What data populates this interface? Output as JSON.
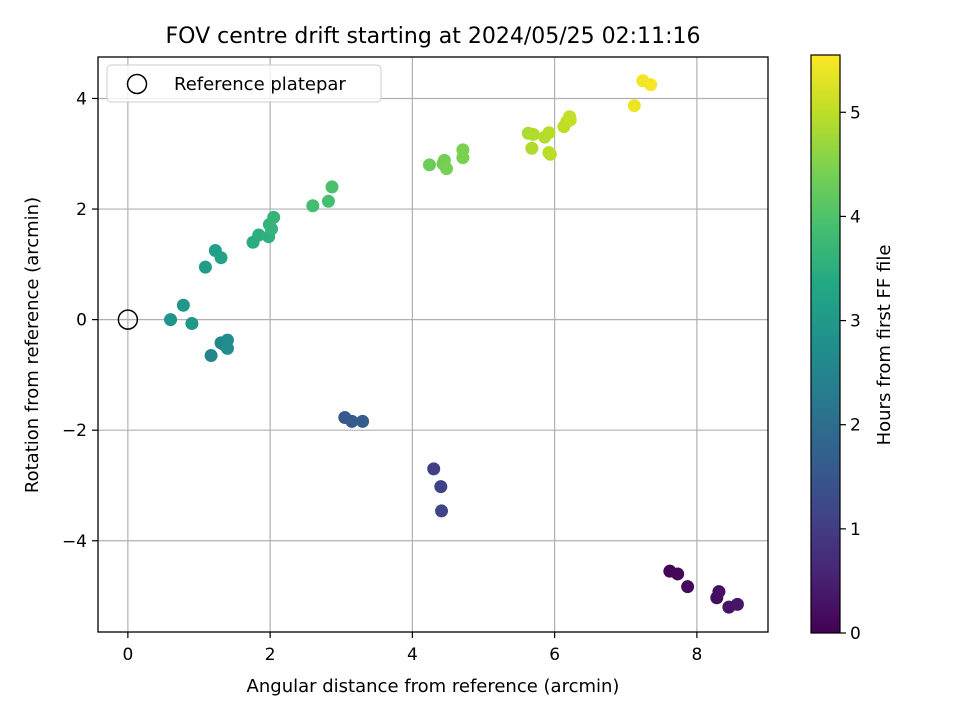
{
  "chart_data": {
    "type": "scatter",
    "title": "FOV centre drift starting at 2024/05/25 02:11:16",
    "xlabel": "Angular distance from reference (arcmin)",
    "ylabel": "Rotation from reference (arcmin)",
    "xlim": [
      -0.42,
      9.0
    ],
    "ylim": [
      -5.65,
      4.75
    ],
    "xticks": [
      0,
      2,
      4,
      6,
      8
    ],
    "yticks": [
      -4,
      -2,
      0,
      2,
      4
    ],
    "xtick_labels": [
      "0",
      "2",
      "4",
      "6",
      "8"
    ],
    "ytick_labels": [
      "−4",
      "−2",
      "0",
      "2",
      "4"
    ],
    "grid": true,
    "legend": {
      "placement": "top-left",
      "entries": [
        "Reference platepar"
      ]
    },
    "reference_point": {
      "x": 0,
      "y": 0,
      "marker": "open-circle",
      "color": "#000000"
    },
    "colorbar": {
      "label": "Hours from first FF file",
      "min": 0,
      "max": 5.55,
      "ticks": [
        0,
        1,
        2,
        3,
        4,
        5
      ],
      "tick_labels": [
        "0",
        "1",
        "2",
        "3",
        "4",
        "5"
      ],
      "colormap": "viridis"
    },
    "points": [
      {
        "x": 7.62,
        "y": -4.55,
        "h": 0.05
      },
      {
        "x": 7.73,
        "y": -4.6,
        "h": 0.1
      },
      {
        "x": 7.87,
        "y": -4.83,
        "h": 0.15
      },
      {
        "x": 8.28,
        "y": -5.03,
        "h": 0.2
      },
      {
        "x": 8.31,
        "y": -4.92,
        "h": 0.25
      },
      {
        "x": 8.45,
        "y": -5.2,
        "h": 0.3
      },
      {
        "x": 8.57,
        "y": -5.15,
        "h": 0.35
      },
      {
        "x": 4.3,
        "y": -2.7,
        "h": 1.05
      },
      {
        "x": 4.4,
        "y": -3.02,
        "h": 1.1
      },
      {
        "x": 4.41,
        "y": -3.46,
        "h": 1.15
      },
      {
        "x": 3.05,
        "y": -1.77,
        "h": 1.55
      },
      {
        "x": 3.15,
        "y": -1.84,
        "h": 1.6
      },
      {
        "x": 3.3,
        "y": -1.84,
        "h": 1.65
      },
      {
        "x": 1.17,
        "y": -0.65,
        "h": 2.5
      },
      {
        "x": 1.31,
        "y": -0.42,
        "h": 2.55
      },
      {
        "x": 1.35,
        "y": -0.45,
        "h": 2.6
      },
      {
        "x": 1.4,
        "y": -0.37,
        "h": 2.65
      },
      {
        "x": 1.4,
        "y": -0.52,
        "h": 2.7
      },
      {
        "x": 0.6,
        "y": 0.0,
        "h": 2.9
      },
      {
        "x": 0.78,
        "y": 0.26,
        "h": 2.95
      },
      {
        "x": 0.9,
        "y": -0.07,
        "h": 3.0
      },
      {
        "x": 1.09,
        "y": 0.95,
        "h": 3.1
      },
      {
        "x": 1.23,
        "y": 1.25,
        "h": 3.15
      },
      {
        "x": 1.31,
        "y": 1.12,
        "h": 3.2
      },
      {
        "x": 1.76,
        "y": 1.4,
        "h": 3.45
      },
      {
        "x": 1.84,
        "y": 1.53,
        "h": 3.5
      },
      {
        "x": 1.98,
        "y": 1.5,
        "h": 3.55
      },
      {
        "x": 1.99,
        "y": 1.72,
        "h": 3.6
      },
      {
        "x": 2.02,
        "y": 1.64,
        "h": 3.62
      },
      {
        "x": 2.05,
        "y": 1.85,
        "h": 3.65
      },
      {
        "x": 2.6,
        "y": 2.06,
        "h": 3.85
      },
      {
        "x": 2.82,
        "y": 2.14,
        "h": 3.9
      },
      {
        "x": 2.87,
        "y": 2.4,
        "h": 3.95
      },
      {
        "x": 4.24,
        "y": 2.8,
        "h": 4.3
      },
      {
        "x": 4.43,
        "y": 2.82,
        "h": 4.35
      },
      {
        "x": 4.45,
        "y": 2.88,
        "h": 4.38
      },
      {
        "x": 4.48,
        "y": 2.73,
        "h": 4.4
      },
      {
        "x": 4.71,
        "y": 2.93,
        "h": 4.45
      },
      {
        "x": 4.71,
        "y": 3.07,
        "h": 4.45
      },
      {
        "x": 5.63,
        "y": 3.37,
        "h": 4.85
      },
      {
        "x": 5.68,
        "y": 3.1,
        "h": 4.88
      },
      {
        "x": 5.7,
        "y": 3.35,
        "h": 4.9
      },
      {
        "x": 5.86,
        "y": 3.3,
        "h": 4.92
      },
      {
        "x": 5.92,
        "y": 3.38,
        "h": 4.95
      },
      {
        "x": 5.92,
        "y": 3.02,
        "h": 4.95
      },
      {
        "x": 5.94,
        "y": 2.99,
        "h": 4.97
      },
      {
        "x": 6.13,
        "y": 3.49,
        "h": 5.0
      },
      {
        "x": 6.17,
        "y": 3.58,
        "h": 5.02
      },
      {
        "x": 6.21,
        "y": 3.67,
        "h": 5.05
      },
      {
        "x": 6.22,
        "y": 3.61,
        "h": 5.05
      },
      {
        "x": 7.12,
        "y": 3.87,
        "h": 5.4
      },
      {
        "x": 7.24,
        "y": 4.32,
        "h": 5.45
      },
      {
        "x": 7.35,
        "y": 4.25,
        "h": 5.5
      }
    ]
  }
}
